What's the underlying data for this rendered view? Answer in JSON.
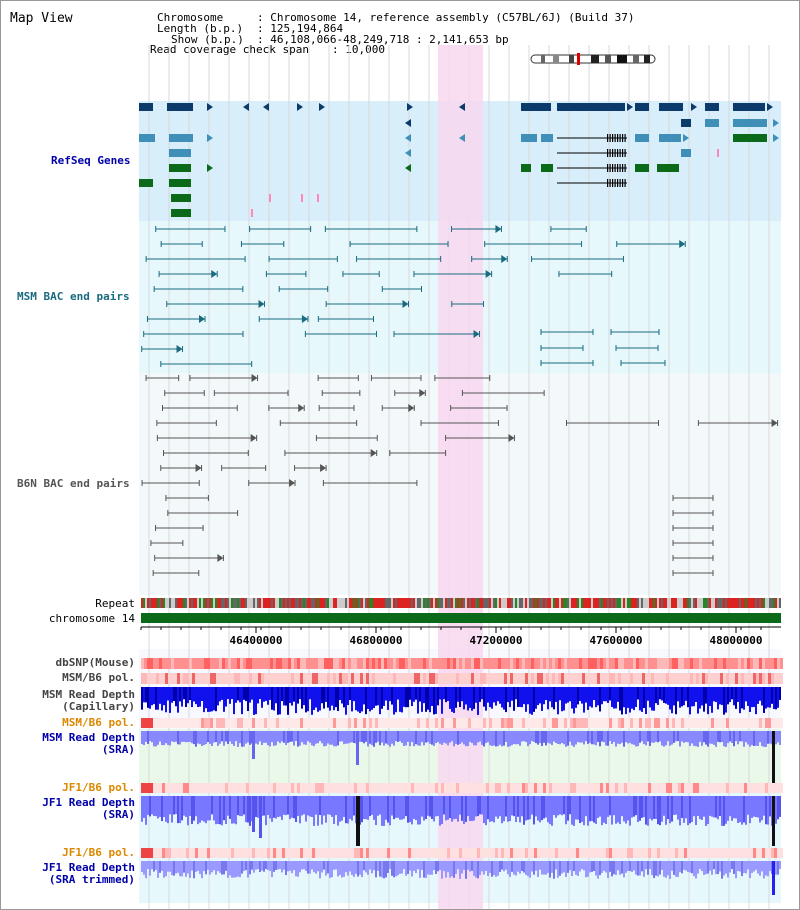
{
  "page": {
    "title": "Map View"
  },
  "header": {
    "chromosome_key": "Chromosome",
    "chromosome_value": ": Chromosome 14, reference assembly (C57BL/6J) (Build 37)",
    "length_key": "Length (b.p.)",
    "length_value": ": 125,194,864",
    "show_key": "Show (b.p.)",
    "show_value": ": 46,108,066-48,249,718 : 2,141,653 bp",
    "span_key": "Read coverage check span",
    "span_value": ": 10,000"
  },
  "tracks": {
    "refseq": "RefSeq Genes",
    "msm_bac": "MSM BAC end pairs",
    "b6n_bac": "B6N BAC end pairs",
    "repeat": "Repeat",
    "chromosome": "chromosome 14",
    "dbsnp": "dbSNP(Mouse)",
    "msm_b6_pol_1": "MSM/B6 pol.",
    "msm_read_depth_cap_1": "MSM Read Depth",
    "msm_read_depth_cap_2": "(Capillary)",
    "msm_b6_pol_2": "MSM/B6 pol.",
    "msm_read_depth_sra_1": "MSM Read Depth",
    "msm_read_depth_sra_2": "(SRA)",
    "jf1_b6_pol_1": "JF1/B6 pol.",
    "jf1_read_depth_sra_1": "JF1 Read Depth",
    "jf1_read_depth_sra_2": "(SRA)",
    "jf1_b6_pol_2": "JF1/B6 pol.",
    "jf1_read_depth_trim_1": "JF1 Read Depth",
    "jf1_read_depth_trim_2": "(SRA trimmed)"
  },
  "axis": {
    "ticks": [
      "46400000",
      "46800000",
      "47200000",
      "47600000",
      "48000000"
    ]
  },
  "colors": {
    "refseq_bg": "#d8eefa",
    "bac_bg": "#e6f8fb",
    "highlight": "#f8d8f0",
    "gene_dark": "#0b3a6b",
    "gene_mid": "#3f8fb8",
    "gene_green": "#0a6a1a",
    "msm_bac": "#1a6a80",
    "b6n_bac": "#555555",
    "chromosome_bar": "#0a6a1a",
    "depth_dark": "#0000ee",
    "depth_light": "#7777ff",
    "msm_label": "#0000aa",
    "pol_label": "#dd8800"
  }
}
